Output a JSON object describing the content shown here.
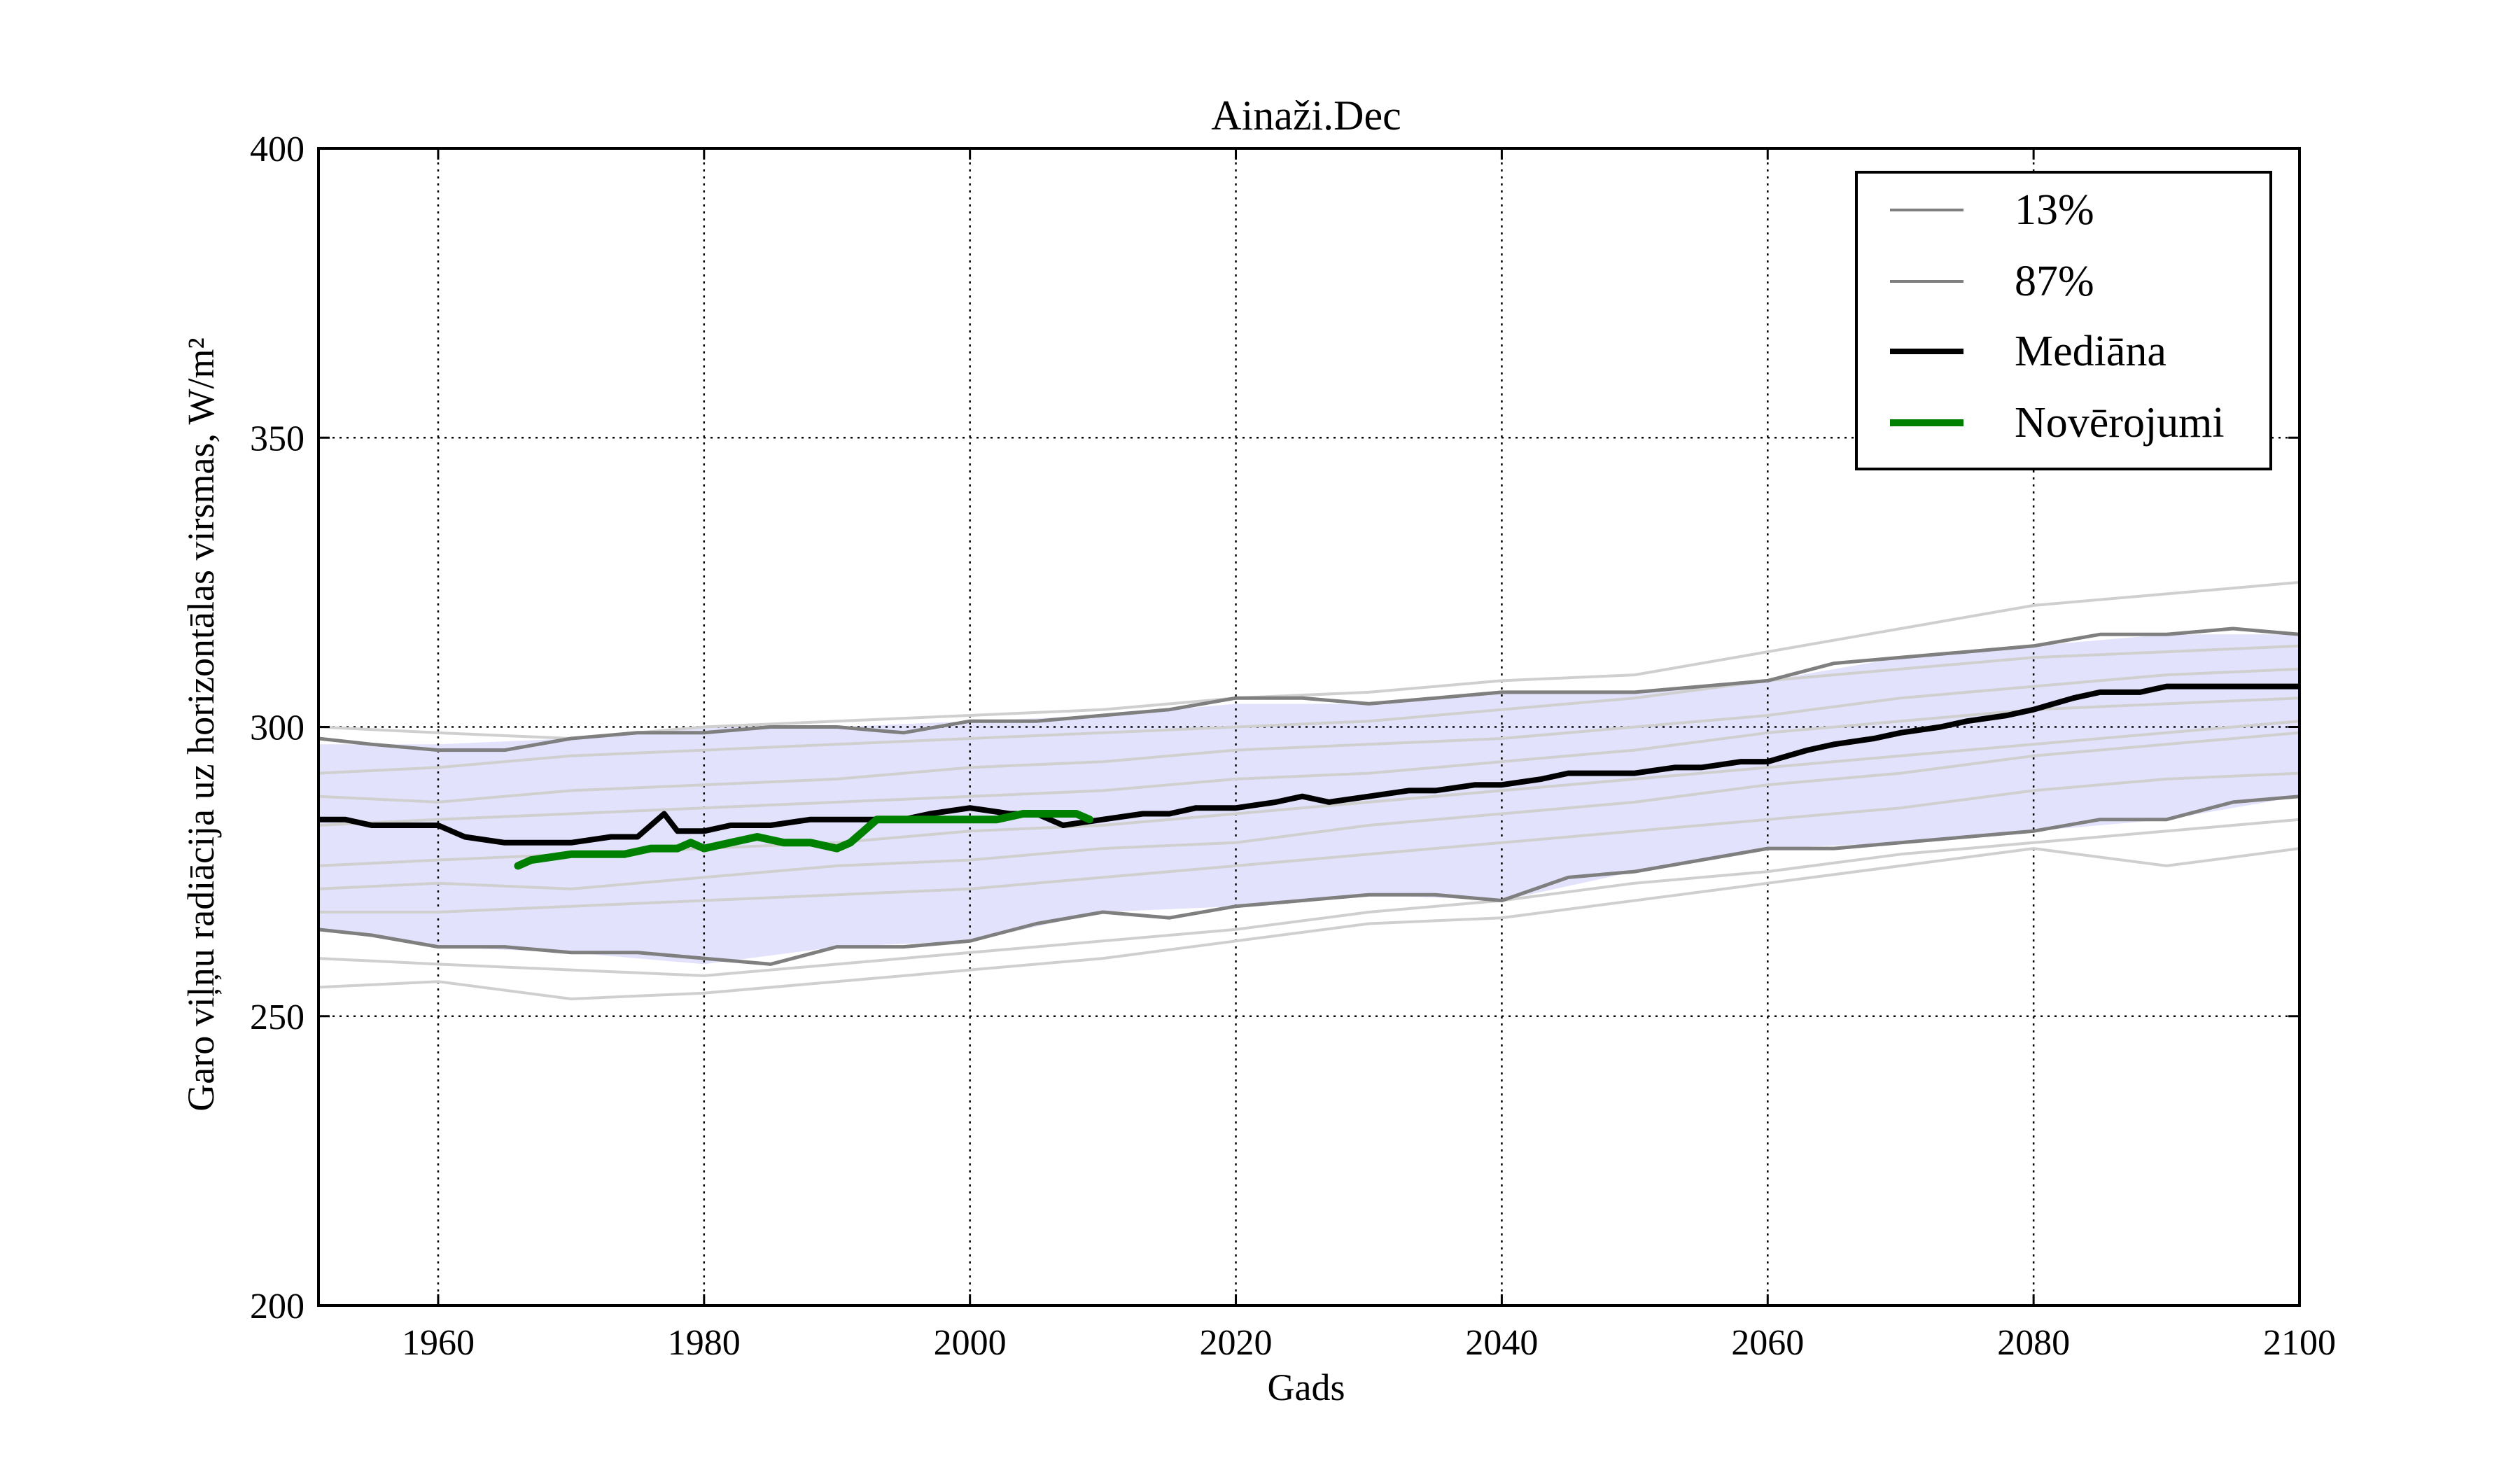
{
  "chart_data": {
    "type": "line",
    "title": "Ainaži.Dec",
    "xlabel": "Gads",
    "ylabel": "Garo viļņu radiācija uz horizontālas virsmas, W/m²",
    "xlim": [
      1951,
      2100
    ],
    "ylim": [
      200,
      400
    ],
    "xticks": [
      1960,
      1980,
      2000,
      2020,
      2040,
      2060,
      2080,
      2100
    ],
    "yticks": [
      200,
      250,
      300,
      350,
      400
    ],
    "grid": true,
    "legend_position": "top-right",
    "band": {
      "fill": "#e2e2fc",
      "x": [
        1951,
        1960,
        1970,
        1980,
        1990,
        2000,
        2010,
        2020,
        2030,
        2040,
        2050,
        2060,
        2070,
        2080,
        2090,
        2100
      ],
      "lower": [
        265,
        262,
        261,
        259,
        262,
        263,
        268,
        269,
        271,
        270,
        275,
        279,
        280,
        282,
        284,
        288
      ],
      "upper": [
        297,
        297,
        298,
        300,
        300,
        301,
        302,
        304,
        304,
        306,
        306,
        308,
        312,
        314,
        316,
        316
      ]
    },
    "series": [
      {
        "name": "13%",
        "role": "lower-bound",
        "color": "#7f7f7f",
        "x": [
          1951,
          1955,
          1960,
          1965,
          1970,
          1975,
          1980,
          1985,
          1990,
          1995,
          2000,
          2005,
          2010,
          2015,
          2020,
          2025,
          2030,
          2035,
          2040,
          2045,
          2050,
          2055,
          2060,
          2065,
          2070,
          2075,
          2080,
          2085,
          2090,
          2095,
          2100
        ],
        "values": [
          265,
          264,
          262,
          262,
          261,
          261,
          260,
          259,
          262,
          262,
          263,
          266,
          268,
          267,
          269,
          270,
          271,
          271,
          270,
          274,
          275,
          277,
          279,
          279,
          280,
          281,
          282,
          284,
          284,
          287,
          288
        ]
      },
      {
        "name": "87%",
        "role": "upper-bound",
        "color": "#7f7f7f",
        "x": [
          1951,
          1955,
          1960,
          1965,
          1970,
          1975,
          1980,
          1985,
          1990,
          1995,
          2000,
          2005,
          2010,
          2015,
          2020,
          2025,
          2030,
          2035,
          2040,
          2045,
          2050,
          2055,
          2060,
          2065,
          2070,
          2075,
          2080,
          2085,
          2090,
          2095,
          2100
        ],
        "values": [
          298,
          297,
          296,
          296,
          298,
          299,
          299,
          300,
          300,
          299,
          301,
          301,
          302,
          303,
          305,
          305,
          304,
          305,
          306,
          306,
          306,
          307,
          308,
          311,
          312,
          313,
          314,
          316,
          316,
          317,
          316
        ]
      },
      {
        "name": "Mediāna",
        "role": "median",
        "color": "#000000",
        "x": [
          1951,
          1953,
          1955,
          1958,
          1960,
          1962,
          1965,
          1968,
          1970,
          1973,
          1975,
          1977,
          1978,
          1980,
          1982,
          1985,
          1988,
          1990,
          1992,
          1995,
          1997,
          2000,
          2003,
          2005,
          2007,
          2010,
          2013,
          2015,
          2017,
          2020,
          2023,
          2025,
          2027,
          2030,
          2033,
          2035,
          2038,
          2040,
          2043,
          2045,
          2048,
          2050,
          2053,
          2055,
          2058,
          2060,
          2063,
          2065,
          2068,
          2070,
          2073,
          2075,
          2078,
          2080,
          2083,
          2085,
          2088,
          2090,
          2093,
          2095,
          2098,
          2100
        ],
        "values": [
          284,
          284,
          283,
          283,
          283,
          281,
          280,
          280,
          280,
          281,
          281,
          285,
          282,
          282,
          283,
          283,
          284,
          284,
          284,
          284,
          285,
          286,
          285,
          285,
          283,
          284,
          285,
          285,
          286,
          286,
          287,
          288,
          287,
          288,
          289,
          289,
          290,
          290,
          291,
          292,
          292,
          292,
          293,
          293,
          294,
          294,
          296,
          297,
          298,
          299,
          300,
          301,
          302,
          303,
          305,
          306,
          306,
          307,
          307,
          307,
          307,
          307
        ]
      },
      {
        "name": "Novērojumi",
        "role": "observed",
        "color": "#008000",
        "x": [
          1966,
          1967,
          1970,
          1972,
          1974,
          1976,
          1978,
          1979,
          1980,
          1982,
          1984,
          1986,
          1988,
          1990,
          1991,
          1992,
          1993,
          1995,
          1997,
          1999,
          2000,
          2002,
          2004,
          2006,
          2007,
          2008,
          2009
        ],
        "values": [
          276,
          277,
          278,
          278,
          278,
          279,
          279,
          280,
          279,
          280,
          281,
          280,
          280,
          279,
          280,
          282,
          284,
          284,
          284,
          284,
          284,
          284,
          285,
          285,
          285,
          285,
          284
        ]
      }
    ],
    "ensemble": {
      "color": "#cfcfcf",
      "members": [
        {
          "x": [
            1951,
            1960,
            1970,
            1980,
            1990,
            2000,
            2010,
            2020,
            2030,
            2040,
            2050,
            2060,
            2070,
            2080,
            2090,
            2100
          ],
          "values": [
            300,
            299,
            298,
            300,
            301,
            302,
            303,
            305,
            306,
            308,
            309,
            313,
            317,
            321,
            323,
            325
          ]
        },
        {
          "x": [
            1951,
            1960,
            1970,
            1980,
            1990,
            2000,
            2010,
            2020,
            2030,
            2040,
            2050,
            2060,
            2070,
            2080,
            2090,
            2100
          ],
          "values": [
            292,
            293,
            295,
            296,
            297,
            298,
            299,
            300,
            301,
            303,
            305,
            308,
            310,
            312,
            313,
            314
          ]
        },
        {
          "x": [
            1951,
            1960,
            1970,
            1980,
            1990,
            2000,
            2010,
            2020,
            2030,
            2040,
            2050,
            2060,
            2070,
            2080,
            2090,
            2100
          ],
          "values": [
            288,
            287,
            289,
            290,
            291,
            293,
            294,
            296,
            297,
            298,
            300,
            302,
            305,
            307,
            309,
            310
          ]
        },
        {
          "x": [
            1951,
            1960,
            1970,
            1980,
            1990,
            2000,
            2010,
            2020,
            2030,
            2040,
            2050,
            2060,
            2070,
            2080,
            2090,
            2100
          ],
          "values": [
            283,
            284,
            285,
            286,
            287,
            288,
            289,
            291,
            292,
            294,
            296,
            299,
            301,
            303,
            304,
            305
          ]
        },
        {
          "x": [
            1951,
            1960,
            1970,
            1980,
            1990,
            2000,
            2010,
            2020,
            2030,
            2040,
            2050,
            2060,
            2070,
            2080,
            2090,
            2100
          ],
          "values": [
            276,
            277,
            278,
            279,
            280,
            282,
            283,
            285,
            287,
            289,
            291,
            293,
            295,
            297,
            299,
            301
          ]
        },
        {
          "x": [
            1951,
            1960,
            1970,
            1980,
            1990,
            2000,
            2010,
            2020,
            2030,
            2040,
            2050,
            2060,
            2070,
            2080,
            2090,
            2100
          ],
          "values": [
            272,
            273,
            272,
            274,
            276,
            277,
            279,
            280,
            283,
            285,
            287,
            290,
            292,
            295,
            297,
            299
          ]
        },
        {
          "x": [
            1951,
            1960,
            1970,
            1980,
            1990,
            2000,
            2010,
            2020,
            2030,
            2040,
            2050,
            2060,
            2070,
            2080,
            2090,
            2100
          ],
          "values": [
            268,
            268,
            269,
            270,
            271,
            272,
            274,
            276,
            278,
            280,
            282,
            284,
            286,
            289,
            291,
            292
          ]
        },
        {
          "x": [
            1951,
            1960,
            1970,
            1980,
            1990,
            2000,
            2010,
            2020,
            2030,
            2040,
            2050,
            2060,
            2070,
            2080,
            2090,
            2100
          ],
          "values": [
            260,
            259,
            258,
            257,
            259,
            261,
            263,
            265,
            268,
            270,
            273,
            275,
            278,
            280,
            282,
            284
          ]
        },
        {
          "x": [
            1951,
            1960,
            1970,
            1980,
            1990,
            2000,
            2010,
            2020,
            2030,
            2040,
            2050,
            2060,
            2070,
            2080,
            2090,
            2100
          ],
          "values": [
            255,
            256,
            253,
            254,
            256,
            258,
            260,
            263,
            266,
            267,
            270,
            273,
            276,
            279,
            276,
            279
          ]
        }
      ]
    }
  }
}
